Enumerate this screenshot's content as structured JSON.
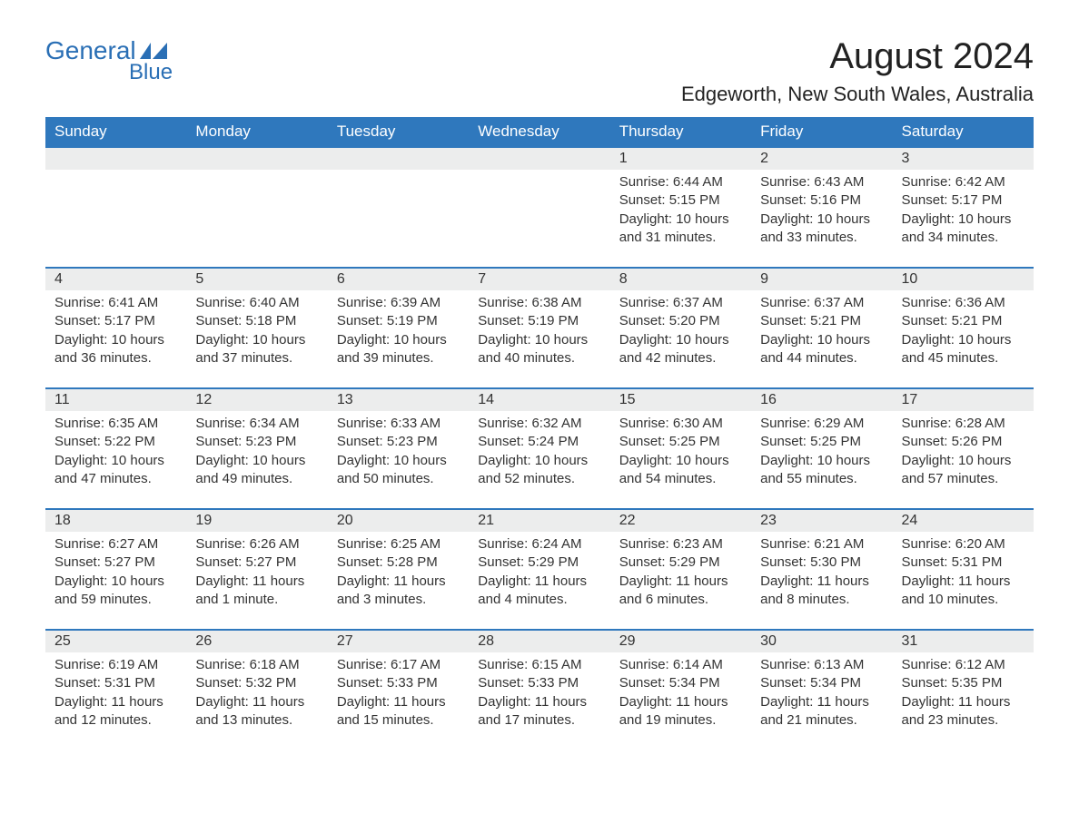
{
  "logo": {
    "text1": "General",
    "text2": "Blue",
    "flag_color": "#2a6fb5"
  },
  "title": "August 2024",
  "location": "Edgeworth, New South Wales, Australia",
  "colors": {
    "header_bg": "#2f78bd",
    "header_text": "#ffffff",
    "daynum_bg": "#eceded",
    "row_border": "#2f78bd",
    "body_text": "#333333",
    "page_bg": "#ffffff",
    "logo_color": "#2a6fb5"
  },
  "fonts": {
    "title_size_pt": 30,
    "location_size_pt": 17,
    "header_size_pt": 13,
    "cell_size_pt": 11
  },
  "weekdays": [
    "Sunday",
    "Monday",
    "Tuesday",
    "Wednesday",
    "Thursday",
    "Friday",
    "Saturday"
  ],
  "weeks": [
    [
      null,
      null,
      null,
      null,
      {
        "d": "1",
        "sunrise": "Sunrise: 6:44 AM",
        "sunset": "Sunset: 5:15 PM",
        "daylight": "Daylight: 10 hours and 31 minutes."
      },
      {
        "d": "2",
        "sunrise": "Sunrise: 6:43 AM",
        "sunset": "Sunset: 5:16 PM",
        "daylight": "Daylight: 10 hours and 33 minutes."
      },
      {
        "d": "3",
        "sunrise": "Sunrise: 6:42 AM",
        "sunset": "Sunset: 5:17 PM",
        "daylight": "Daylight: 10 hours and 34 minutes."
      }
    ],
    [
      {
        "d": "4",
        "sunrise": "Sunrise: 6:41 AM",
        "sunset": "Sunset: 5:17 PM",
        "daylight": "Daylight: 10 hours and 36 minutes."
      },
      {
        "d": "5",
        "sunrise": "Sunrise: 6:40 AM",
        "sunset": "Sunset: 5:18 PM",
        "daylight": "Daylight: 10 hours and 37 minutes."
      },
      {
        "d": "6",
        "sunrise": "Sunrise: 6:39 AM",
        "sunset": "Sunset: 5:19 PM",
        "daylight": "Daylight: 10 hours and 39 minutes."
      },
      {
        "d": "7",
        "sunrise": "Sunrise: 6:38 AM",
        "sunset": "Sunset: 5:19 PM",
        "daylight": "Daylight: 10 hours and 40 minutes."
      },
      {
        "d": "8",
        "sunrise": "Sunrise: 6:37 AM",
        "sunset": "Sunset: 5:20 PM",
        "daylight": "Daylight: 10 hours and 42 minutes."
      },
      {
        "d": "9",
        "sunrise": "Sunrise: 6:37 AM",
        "sunset": "Sunset: 5:21 PM",
        "daylight": "Daylight: 10 hours and 44 minutes."
      },
      {
        "d": "10",
        "sunrise": "Sunrise: 6:36 AM",
        "sunset": "Sunset: 5:21 PM",
        "daylight": "Daylight: 10 hours and 45 minutes."
      }
    ],
    [
      {
        "d": "11",
        "sunrise": "Sunrise: 6:35 AM",
        "sunset": "Sunset: 5:22 PM",
        "daylight": "Daylight: 10 hours and 47 minutes."
      },
      {
        "d": "12",
        "sunrise": "Sunrise: 6:34 AM",
        "sunset": "Sunset: 5:23 PM",
        "daylight": "Daylight: 10 hours and 49 minutes."
      },
      {
        "d": "13",
        "sunrise": "Sunrise: 6:33 AM",
        "sunset": "Sunset: 5:23 PM",
        "daylight": "Daylight: 10 hours and 50 minutes."
      },
      {
        "d": "14",
        "sunrise": "Sunrise: 6:32 AM",
        "sunset": "Sunset: 5:24 PM",
        "daylight": "Daylight: 10 hours and 52 minutes."
      },
      {
        "d": "15",
        "sunrise": "Sunrise: 6:30 AM",
        "sunset": "Sunset: 5:25 PM",
        "daylight": "Daylight: 10 hours and 54 minutes."
      },
      {
        "d": "16",
        "sunrise": "Sunrise: 6:29 AM",
        "sunset": "Sunset: 5:25 PM",
        "daylight": "Daylight: 10 hours and 55 minutes."
      },
      {
        "d": "17",
        "sunrise": "Sunrise: 6:28 AM",
        "sunset": "Sunset: 5:26 PM",
        "daylight": "Daylight: 10 hours and 57 minutes."
      }
    ],
    [
      {
        "d": "18",
        "sunrise": "Sunrise: 6:27 AM",
        "sunset": "Sunset: 5:27 PM",
        "daylight": "Daylight: 10 hours and 59 minutes."
      },
      {
        "d": "19",
        "sunrise": "Sunrise: 6:26 AM",
        "sunset": "Sunset: 5:27 PM",
        "daylight": "Daylight: 11 hours and 1 minute."
      },
      {
        "d": "20",
        "sunrise": "Sunrise: 6:25 AM",
        "sunset": "Sunset: 5:28 PM",
        "daylight": "Daylight: 11 hours and 3 minutes."
      },
      {
        "d": "21",
        "sunrise": "Sunrise: 6:24 AM",
        "sunset": "Sunset: 5:29 PM",
        "daylight": "Daylight: 11 hours and 4 minutes."
      },
      {
        "d": "22",
        "sunrise": "Sunrise: 6:23 AM",
        "sunset": "Sunset: 5:29 PM",
        "daylight": "Daylight: 11 hours and 6 minutes."
      },
      {
        "d": "23",
        "sunrise": "Sunrise: 6:21 AM",
        "sunset": "Sunset: 5:30 PM",
        "daylight": "Daylight: 11 hours and 8 minutes."
      },
      {
        "d": "24",
        "sunrise": "Sunrise: 6:20 AM",
        "sunset": "Sunset: 5:31 PM",
        "daylight": "Daylight: 11 hours and 10 minutes."
      }
    ],
    [
      {
        "d": "25",
        "sunrise": "Sunrise: 6:19 AM",
        "sunset": "Sunset: 5:31 PM",
        "daylight": "Daylight: 11 hours and 12 minutes."
      },
      {
        "d": "26",
        "sunrise": "Sunrise: 6:18 AM",
        "sunset": "Sunset: 5:32 PM",
        "daylight": "Daylight: 11 hours and 13 minutes."
      },
      {
        "d": "27",
        "sunrise": "Sunrise: 6:17 AM",
        "sunset": "Sunset: 5:33 PM",
        "daylight": "Daylight: 11 hours and 15 minutes."
      },
      {
        "d": "28",
        "sunrise": "Sunrise: 6:15 AM",
        "sunset": "Sunset: 5:33 PM",
        "daylight": "Daylight: 11 hours and 17 minutes."
      },
      {
        "d": "29",
        "sunrise": "Sunrise: 6:14 AM",
        "sunset": "Sunset: 5:34 PM",
        "daylight": "Daylight: 11 hours and 19 minutes."
      },
      {
        "d": "30",
        "sunrise": "Sunrise: 6:13 AM",
        "sunset": "Sunset: 5:34 PM",
        "daylight": "Daylight: 11 hours and 21 minutes."
      },
      {
        "d": "31",
        "sunrise": "Sunrise: 6:12 AM",
        "sunset": "Sunset: 5:35 PM",
        "daylight": "Daylight: 11 hours and 23 minutes."
      }
    ]
  ]
}
